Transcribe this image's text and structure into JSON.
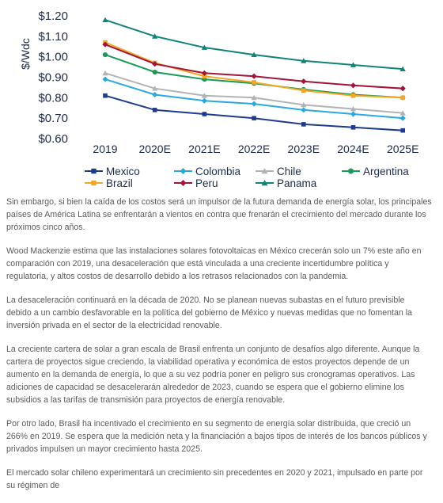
{
  "chart_data": {
    "type": "line",
    "ylabel": "$/Wdc",
    "categories": [
      "2019",
      "2020E",
      "2021E",
      "2022E",
      "2023E",
      "2024E",
      "2025E"
    ],
    "ylim": [
      0.6,
      1.2
    ],
    "yticks": [
      "$0.60",
      "$0.70",
      "$0.80",
      "$0.90",
      "$1.00",
      "$1.10",
      "$1.20"
    ],
    "grid": false,
    "legend_position": "bottom",
    "series": [
      {
        "name": "Mexico",
        "color": "#1f3b8f",
        "marker": "square",
        "values": [
          0.81,
          0.74,
          0.72,
          0.7,
          0.67,
          0.655,
          0.64
        ]
      },
      {
        "name": "Colombia",
        "color": "#29a9e0",
        "marker": "diamond",
        "values": [
          0.89,
          0.815,
          0.785,
          0.77,
          0.74,
          0.72,
          0.7
        ]
      },
      {
        "name": "Chile",
        "color": "#b3b3b3",
        "marker": "triangle",
        "values": [
          0.92,
          0.845,
          0.81,
          0.8,
          0.765,
          0.745,
          0.725
        ]
      },
      {
        "name": "Argentina",
        "color": "#1a9a57",
        "marker": "circle",
        "values": [
          1.01,
          0.925,
          0.89,
          0.87,
          0.84,
          0.815,
          0.8
        ]
      },
      {
        "name": "Brazil",
        "color": "#f5a623",
        "marker": "square",
        "values": [
          1.07,
          0.97,
          0.905,
          0.875,
          0.835,
          0.81,
          0.8
        ]
      },
      {
        "name": "Peru",
        "color": "#a3143a",
        "marker": "diamond",
        "values": [
          1.06,
          0.965,
          0.92,
          0.905,
          0.88,
          0.86,
          0.845
        ]
      },
      {
        "name": "Panama",
        "color": "#0f8577",
        "marker": "triangle",
        "values": [
          1.18,
          1.1,
          1.045,
          1.01,
          0.98,
          0.96,
          0.94
        ]
      }
    ]
  },
  "article": {
    "p1": "Sin embargo, si bien la caída de los costos será un impulsor de la futura demanda de energía solar, los principales países de América Latina se enfrentarán a vientos en contra que frenarán el crecimiento del mercado durante los próximos cinco años.",
    "p2": "Wood Mackenzie estima que las instalaciones solares fotovoltaicas en México crecerán solo un 7% este año en comparación con 2019, una desaceleración que está vinculada a una creciente incertidumbre política y regulatoria, y altos costos de desarrollo debido a los retrasos relacionados con la pandemia.",
    "p3": "La desaceleración continuará en la década de 2020. No se planean nuevas subastas en el futuro previsible debido a un cambio desfavorable en la política del gobierno de México y nuevas medidas que no fomentan la inversión privada en el sector de la electricidad renovable.",
    "p4": "La creciente cartera de solar a gran escala de Brasil enfrenta un conjunto de desafíos algo diferente. Aunque la cartera de proyectos sigue creciendo, la viabilidad operativa y económica de estos proyectos depende de un aumento en la demanda de energía, lo que a su vez podría poner en peligro sus cronogramas operativos. Las adiciones de capacidad se desacelerarán alrededor de 2023, cuando se espera que el gobierno elimine los subsidios a las tarifas de transmisión para proyectos de energía renovable.",
    "p5": "Por otro lado, Brasil ha incentivado el crecimiento en su segmento de energía solar distribuida, que creció un 266% en 2019. Se espera que la medición neta y la financiación a bajos tipos de interés de los bancos públicos y privados impulsen un mayor crecimiento hasta 2025.",
    "p6": "El mercado solar chileno experimentará un crecimiento sin precedentes en 2020 y 2021, impulsado en parte por su régimen de"
  }
}
